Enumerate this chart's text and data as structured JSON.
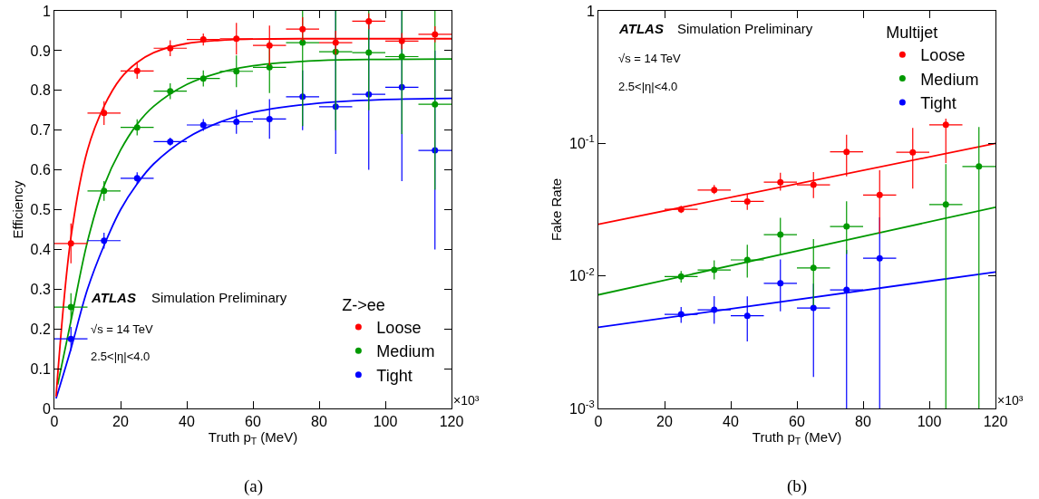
{
  "chart_data": [
    {
      "type": "scatter",
      "xlabel": "Truth p$_{T}$ (MeV)",
      "ylabel": "Efficiency",
      "legend_title": "Z->ee",
      "legend": "bottom right",
      "marker": "circle",
      "xlim": [
        0,
        120
      ],
      "xticks": [
        0,
        20,
        40,
        60,
        80,
        100,
        120
      ],
      "ylim": [
        0,
        1
      ],
      "yticks": [
        0,
        0.1,
        0.2,
        0.3,
        0.4,
        0.5,
        0.6,
        0.7,
        0.8,
        0.9,
        1
      ],
      "annotations": [
        "ATLAS",
        "Simulation Preliminary",
        "√s = 14 TeV",
        "2.5<|η|<4.0",
        "×10³",
        "(a)"
      ],
      "series": [
        {
          "name": "Loose",
          "color": "#ff0000",
          "x": [
            5,
            15,
            25,
            35,
            45,
            55,
            65,
            75,
            85,
            95,
            105,
            115
          ],
          "values": [
            0.415,
            0.743,
            0.849,
            0.906,
            0.928,
            0.93,
            0.913,
            0.954,
            0.92,
            0.974,
            0.924,
            0.941
          ],
          "errors": [
            0.05,
            0.03,
            0.02,
            0.02,
            0.015,
            0.04,
            0.05,
            0.03,
            0.03,
            0.02,
            0.02,
            0.02
          ],
          "xerrors": [
            5,
            5,
            5,
            5,
            5,
            5,
            5,
            5,
            5,
            5,
            5,
            5
          ]
        },
        {
          "name": "Medium",
          "color": "#009900",
          "x": [
            5,
            15,
            25,
            35,
            45,
            55,
            65,
            75,
            85,
            95,
            105,
            115
          ],
          "values": [
            0.255,
            0.547,
            0.707,
            0.798,
            0.83,
            0.848,
            0.858,
            0.92,
            0.897,
            0.895,
            0.885,
            0.765
          ],
          "errors": [
            0.035,
            0.025,
            0.02,
            0.02,
            0.02,
            0.04,
            0.065,
            [
              0.71,
              1.0
            ],
            [
              0.7,
              1.0
            ],
            [
              0.75,
              1.0
            ],
            [
              0.69,
              1.0
            ],
            [
              0.55,
              1.0
            ]
          ],
          "xerrors": [
            5,
            5,
            5,
            5,
            5,
            5,
            5,
            5,
            5,
            5,
            5,
            5
          ]
        },
        {
          "name": "Tight",
          "color": "#0000ff",
          "x": [
            5,
            15,
            25,
            35,
            45,
            55,
            65,
            75,
            85,
            95,
            105,
            115
          ],
          "values": [
            0.175,
            0.422,
            0.579,
            0.671,
            0.713,
            0.721,
            0.728,
            0.784,
            0.759,
            0.79,
            0.808,
            0.649
          ],
          "errors": [
            0.03,
            0.02,
            0.015,
            0.01,
            0.015,
            0.03,
            0.05,
            [
              0.7,
              0.85
            ],
            [
              0.64,
              1.0
            ],
            [
              0.6,
              0.98
            ],
            [
              0.572,
              1.0
            ],
            [
              0.4,
              0.9
            ]
          ],
          "xerrors": [
            5,
            5,
            5,
            5,
            5,
            5,
            5,
            5,
            5,
            5,
            5,
            5
          ]
        },
        {
          "type": "line",
          "marker": "none",
          "color": "#ff0000",
          "line_style": "solid",
          "x": [
            0.5,
            5,
            10,
            15,
            20,
            25,
            30,
            40,
            50,
            60,
            80,
            120
          ],
          "values": [
            0.03,
            0.43,
            0.65,
            0.76,
            0.83,
            0.87,
            0.895,
            0.918,
            0.926,
            0.929,
            0.93,
            0.93
          ]
        },
        {
          "type": "line",
          "marker": "none",
          "color": "#009900",
          "line_style": "solid",
          "x": [
            1,
            5,
            10,
            15,
            20,
            25,
            30,
            40,
            50,
            60,
            80,
            100,
            120
          ],
          "values": [
            0.06,
            0.22,
            0.42,
            0.56,
            0.65,
            0.715,
            0.76,
            0.815,
            0.845,
            0.862,
            0.875,
            0.878,
            0.879
          ]
        },
        {
          "type": "line",
          "marker": "none",
          "color": "#0000ff",
          "line_style": "solid",
          "x": [
            0.5,
            5,
            10,
            15,
            20,
            25,
            30,
            40,
            50,
            60,
            80,
            100,
            120
          ],
          "values": [
            0.025,
            0.15,
            0.3,
            0.41,
            0.5,
            0.565,
            0.615,
            0.68,
            0.72,
            0.745,
            0.768,
            0.777,
            0.78
          ]
        }
      ]
    },
    {
      "type": "scatter",
      "xlabel": "Truth p$_{T}$ (MeV)",
      "ylabel": "Fake Rate",
      "legend_title": "Multijet",
      "legend": "top right",
      "marker": "circle",
      "log": "y",
      "xlim": [
        0,
        120
      ],
      "xticks": [
        0,
        20,
        40,
        60,
        80,
        100,
        120
      ],
      "ylim": [
        0.001,
        1
      ],
      "yticks": [
        {
          "value": 0.001,
          "label": "10$^{-3}$"
        },
        {
          "value": 0.01,
          "label": "10$^{-2}$"
        },
        {
          "value": 0.1,
          "label": "10$^{-1}$"
        },
        1
      ],
      "annotations": [
        "ATLAS",
        "Simulation Preliminary",
        "√s = 14 TeV",
        "2.5<|η|<4.0",
        "×10³",
        "(b)"
      ],
      "series": [
        {
          "name": "Loose",
          "color": "#ff0000",
          "x": [
            25,
            35,
            45,
            55,
            65,
            75,
            85,
            95,
            105
          ],
          "values": [
            0.0318,
            0.0445,
            0.0365,
            0.051,
            0.0487,
            0.0863,
            0.0408,
            0.0856,
            0.138
          ],
          "errors": [
            [
              0.0298,
              0.0338
            ],
            [
              0.0415,
              0.0485
            ],
            [
              0.0315,
              0.0415
            ],
            [
              0.044,
              0.06
            ],
            [
              0.0387,
              0.0607
            ],
            [
              0.0563,
              0.1163
            ],
            [
              0.0208,
              0.0628
            ],
            [
              0.0456,
              0.1306
            ],
            [
              0.071,
              0.154
            ]
          ],
          "xerrors": [
            5,
            5,
            5,
            5,
            5,
            5,
            5,
            5,
            5
          ]
        },
        {
          "name": "Medium",
          "color": "#009900",
          "x": [
            25,
            35,
            45,
            55,
            65,
            75,
            105,
            115
          ],
          "values": [
            0.0099,
            0.0111,
            0.0132,
            0.0205,
            0.0115,
            0.0236,
            0.0346,
            0.067
          ],
          "errors": [
            [
              0.0089,
              0.0109
            ],
            [
              0.0094,
              0.0131
            ],
            [
              0.0097,
              0.0172
            ],
            [
              0.0145,
              0.0275
            ],
            [
              0.006,
              0.019
            ],
            [
              0.0146,
              0.0366
            ],
            [
              0.001,
              0.0696
            ],
            [
              0.001,
              0.133
            ]
          ],
          "xerrors": [
            5,
            5,
            5,
            5,
            5,
            5,
            5,
            5
          ]
        },
        {
          "name": "Tight",
          "color": "#0000ff",
          "x": [
            25,
            35,
            45,
            55,
            65,
            75,
            85
          ],
          "values": [
            0.00513,
            0.00555,
            0.005,
            0.0088,
            0.00573,
            0.00785,
            0.0136
          ],
          "errors": [
            [
              0.00443,
              0.00583
            ],
            [
              0.00435,
              0.00705
            ],
            [
              0.0032,
              0.007
            ],
            [
              0.0054,
              0.0133
            ],
            [
              0.00173,
              0.00873
            ],
            [
              0.001,
              0.0157
            ],
            [
              0.001,
              0.0277
            ]
          ],
          "xerrors": [
            5,
            5,
            5,
            5,
            5,
            5,
            5
          ]
        },
        {
          "type": "line",
          "marker": "none",
          "color": "#ff0000",
          "line_style": "solid",
          "x": [
            0,
            120
          ],
          "values": [
            0.0245,
            0.1
          ]
        },
        {
          "type": "line",
          "marker": "none",
          "color": "#009900",
          "line_style": "solid",
          "x": [
            0,
            120
          ],
          "values": [
            0.0072,
            0.033
          ]
        },
        {
          "type": "line",
          "marker": "none",
          "color": "#0000ff",
          "line_style": "solid",
          "x": [
            0,
            120
          ],
          "values": [
            0.0041,
            0.0107
          ]
        }
      ]
    }
  ]
}
